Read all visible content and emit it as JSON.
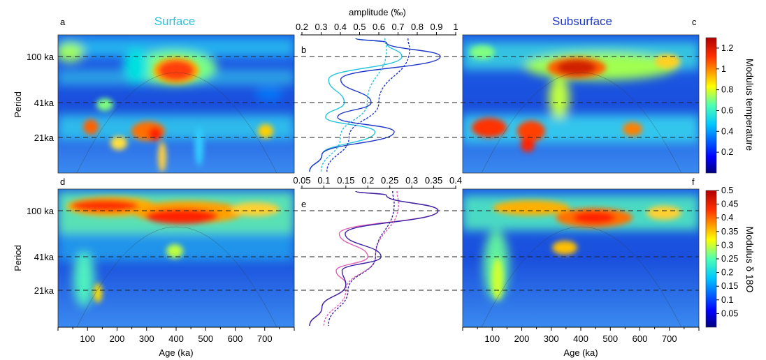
{
  "panel_letters": {
    "a": "a",
    "b": "b",
    "c": "c",
    "d": "d",
    "e": "e",
    "f": "f"
  },
  "titles": {
    "surface": "Surface",
    "subsurface": "Subsurface"
  },
  "colors": {
    "surface": "#27c4dd",
    "subsurface": "#1f38c8",
    "surface_d18o": "#e05fb4",
    "subsurface_d18o": "#3b23a6"
  },
  "period_labels": [
    "100 ka",
    "41ka",
    "21ka"
  ],
  "ylabel": "Period",
  "xlabel": "Age (ka)",
  "x_ticks": [
    "100",
    "200",
    "300",
    "400",
    "500",
    "600",
    "700"
  ],
  "colorbar_top": {
    "title": "Modulus temperature",
    "ticks": [
      "1.2",
      "1",
      "0.8",
      "0.6",
      "0.4",
      "0.2"
    ],
    "range": [
      0,
      1.3
    ]
  },
  "colorbar_bottom": {
    "title": "Modulus δ 18O",
    "ticks": [
      "0.5",
      "0.45",
      "0.4",
      "0.35",
      "0.3",
      "0.25",
      "0.2",
      "0.15",
      "0.1",
      "0.05"
    ],
    "range": [
      0,
      0.5
    ]
  },
  "chart_data": [
    {
      "type": "heatmap",
      "panel": "a",
      "title": "Surface",
      "xlabel": "Age (ka)",
      "ylabel": "Period",
      "xlim": [
        0,
        800
      ],
      "ylabel_ticks": [
        "100 ka",
        "41ka",
        "21ka"
      ],
      "hotspots": [
        {
          "age": 380,
          "period": "100 ka",
          "modulus": 1.2
        },
        {
          "age": 330,
          "period": "21ka",
          "modulus": 1.2
        },
        {
          "age": 110,
          "period": "21ka",
          "modulus": 1.1
        },
        {
          "age": 590,
          "period": "21ka",
          "modulus": 0.8
        }
      ]
    },
    {
      "type": "line",
      "panel": "b",
      "xlabel": "amplitude (‰)",
      "xlim": [
        0.2,
        1
      ],
      "x_ticks": [
        "0.2",
        "0.3",
        "0.4",
        "0.5",
        "0.6",
        "0.7",
        "0.8",
        "0.9",
        "1"
      ],
      "series": [
        {
          "style": "solid",
          "color": "surface",
          "period_points": [
            "21ka",
            "41ka",
            "100 ka"
          ],
          "values": [
            0.58,
            0.42,
            0.72
          ]
        },
        {
          "style": "solid",
          "color": "subsurface",
          "period_points": [
            "21ka",
            "41ka",
            "100 ka"
          ],
          "values": [
            0.68,
            0.56,
            0.92
          ]
        },
        {
          "style": "dashed",
          "color": "surface",
          "values": [
            0.3,
            0.5,
            0.64
          ]
        },
        {
          "style": "dashed",
          "color": "subsurface",
          "values": [
            0.33,
            0.56,
            0.76
          ]
        }
      ]
    },
    {
      "type": "heatmap",
      "panel": "c",
      "title": "Subsurface",
      "xlabel": "Age (ka)",
      "ylabel": "Period",
      "xlim": [
        0,
        800
      ],
      "hotspots": [
        {
          "age": 400,
          "period": "100 ka",
          "modulus": 1.3
        },
        {
          "age": 80,
          "period": "21ka",
          "modulus": 1.2
        },
        {
          "age": 250,
          "period": "21ka",
          "modulus": 1.1
        },
        {
          "age": 570,
          "period": "21ka",
          "modulus": 0.9
        }
      ]
    },
    {
      "type": "heatmap",
      "panel": "d",
      "xlabel": "Age (ka)",
      "ylabel": "Period",
      "xlim": [
        0,
        800
      ],
      "hotspots": [
        {
          "age": 380,
          "period": "100 ka",
          "modulus": 0.5
        },
        {
          "age": 120,
          "period": "100 ka",
          "modulus": 0.45
        },
        {
          "age": 300,
          "period": "41ka",
          "modulus": 0.3
        }
      ]
    },
    {
      "type": "line",
      "panel": "e",
      "xlim": [
        0.05,
        0.4
      ],
      "x_ticks": [
        "0.05",
        "0.1",
        "0.15",
        "0.2",
        "0.25",
        "0.3",
        "0.35",
        "0.4"
      ],
      "series": [
        {
          "style": "solid",
          "color": "surface_d18o",
          "period_points": [
            "21ka",
            "41ka",
            "100 ka"
          ],
          "values": [
            0.15,
            0.2,
            0.36
          ]
        },
        {
          "style": "solid",
          "color": "subsurface_d18o",
          "period_points": [
            "21ka",
            "41ka",
            "100 ka"
          ],
          "values": [
            0.15,
            0.23,
            0.36
          ]
        },
        {
          "style": "dashed",
          "color": "surface_d18o",
          "values": [
            0.1,
            0.2,
            0.27
          ]
        },
        {
          "style": "dashed",
          "color": "subsurface_d18o",
          "values": [
            0.11,
            0.2,
            0.26
          ]
        }
      ]
    },
    {
      "type": "heatmap",
      "panel": "f",
      "xlabel": "Age (ka)",
      "ylabel": "Period",
      "xlim": [
        0,
        800
      ],
      "hotspots": [
        {
          "age": 420,
          "period": "100 ka",
          "modulus": 0.5
        },
        {
          "age": 160,
          "period": "100 ka",
          "modulus": 0.45
        },
        {
          "age": 310,
          "period": "41ka",
          "modulus": 0.35
        }
      ]
    }
  ]
}
